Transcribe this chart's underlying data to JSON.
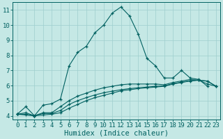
{
  "xlabel": "Humidex (Indice chaleur)",
  "ylabel": "",
  "bg_color": "#c5e8e5",
  "grid_color": "#9ecece",
  "line_color": "#006060",
  "xlim": [
    -0.5,
    23.5
  ],
  "ylim": [
    3.75,
    11.5
  ],
  "xticks": [
    0,
    1,
    2,
    3,
    4,
    5,
    6,
    7,
    8,
    9,
    10,
    11,
    12,
    13,
    14,
    15,
    16,
    17,
    18,
    19,
    20,
    21,
    22,
    23
  ],
  "yticks": [
    4,
    5,
    6,
    7,
    8,
    9,
    10,
    11
  ],
  "series": [
    {
      "x": [
        0,
        1,
        2,
        3,
        4,
        5,
        6,
        7,
        8,
        9,
        10,
        11,
        12,
        13,
        14,
        15,
        16,
        17,
        18,
        19,
        20,
        21,
        22
      ],
      "y": [
        4.1,
        4.6,
        4.0,
        4.7,
        4.8,
        5.1,
        7.3,
        8.2,
        8.6,
        9.5,
        10.0,
        10.8,
        11.2,
        10.6,
        9.4,
        7.8,
        7.3,
        6.5,
        6.5,
        7.0,
        6.5,
        6.4,
        5.95
      ]
    },
    {
      "x": [
        0,
        1,
        2,
        3,
        4,
        5,
        6,
        7,
        8,
        9,
        10,
        11,
        12,
        13,
        14,
        15,
        16,
        17,
        18,
        19,
        20,
        21,
        22,
        23
      ],
      "y": [
        4.1,
        4.05,
        4.0,
        4.05,
        4.1,
        4.2,
        4.5,
        4.75,
        5.0,
        5.2,
        5.35,
        5.5,
        5.65,
        5.72,
        5.8,
        5.85,
        5.9,
        5.95,
        6.1,
        6.2,
        6.3,
        6.35,
        6.3,
        5.95
      ]
    },
    {
      "x": [
        0,
        1,
        2,
        3,
        4,
        5,
        6,
        7,
        8,
        9,
        10,
        11,
        12,
        13,
        14,
        15,
        16,
        17,
        18,
        19,
        20,
        21,
        22,
        23
      ],
      "y": [
        4.1,
        4.1,
        4.0,
        4.15,
        4.15,
        4.35,
        4.75,
        5.0,
        5.2,
        5.38,
        5.52,
        5.63,
        5.72,
        5.8,
        5.85,
        5.9,
        5.95,
        5.98,
        6.12,
        6.22,
        6.32,
        6.36,
        6.28,
        5.95
      ]
    },
    {
      "x": [
        0,
        1,
        2,
        3,
        4,
        5,
        6,
        7,
        8,
        9,
        10,
        11,
        12,
        13,
        14,
        15,
        16,
        17,
        18,
        19,
        20,
        21,
        22,
        23
      ],
      "y": [
        4.1,
        4.2,
        4.0,
        4.2,
        4.2,
        4.6,
        5.0,
        5.3,
        5.5,
        5.7,
        5.85,
        5.95,
        6.05,
        6.1,
        6.1,
        6.1,
        6.1,
        6.05,
        6.2,
        6.3,
        6.4,
        6.35,
        6.1,
        5.95
      ]
    }
  ],
  "tick_fontsize": 6.5,
  "label_fontsize": 7.5
}
